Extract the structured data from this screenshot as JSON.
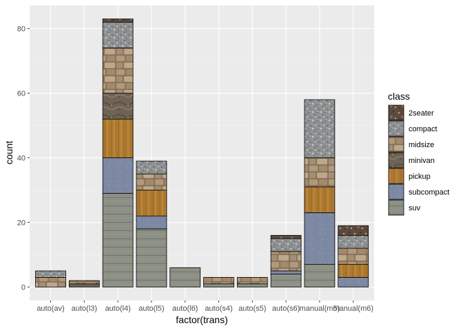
{
  "chart_data": {
    "type": "bar",
    "stacked": true,
    "xlabel": "factor(trans)",
    "ylabel": "count",
    "ylim": [
      0,
      83
    ],
    "yticks": [
      0,
      20,
      40,
      60,
      80
    ],
    "grid": true,
    "legend_position": "right",
    "legend_title": "class",
    "categories": [
      "auto(av)",
      "auto(l3)",
      "auto(l4)",
      "auto(l5)",
      "auto(l6)",
      "auto(s4)",
      "auto(s5)",
      "auto(s6)",
      "manual(m5)",
      "manual(m6)"
    ],
    "series": [
      {
        "name": "2seater",
        "color": "#5e4a3c",
        "texture": "dark-speckled-stone",
        "values": [
          0,
          0,
          1,
          0,
          0,
          0,
          0,
          1,
          0,
          3
        ]
      },
      {
        "name": "compact",
        "color": "#8c8f92",
        "texture": "gravel",
        "values": [
          2,
          0,
          8,
          4,
          0,
          0,
          0,
          4,
          18,
          4
        ]
      },
      {
        "name": "midsize",
        "color": "#9b8365",
        "texture": "flagstone",
        "values": [
          3,
          1,
          14,
          5,
          0,
          2,
          2,
          6,
          9,
          5
        ]
      },
      {
        "name": "minivan",
        "color": "#6e6354",
        "texture": "rough-stone",
        "values": [
          0,
          1,
          8,
          0,
          0,
          0,
          0,
          0,
          0,
          0
        ]
      },
      {
        "name": "pickup",
        "color": "#b07b32",
        "texture": "wood",
        "values": [
          0,
          0,
          12,
          8,
          0,
          0,
          0,
          0,
          8,
          4
        ]
      },
      {
        "name": "subcompact",
        "color": "#7f8aa2",
        "texture": "blue-slate",
        "values": [
          0,
          0,
          11,
          4,
          0,
          0,
          0,
          1,
          16,
          3
        ]
      },
      {
        "name": "suv",
        "color": "#8c8f84",
        "texture": "grey-planks",
        "values": [
          0,
          0,
          29,
          18,
          6,
          1,
          1,
          4,
          7,
          0
        ]
      }
    ]
  }
}
